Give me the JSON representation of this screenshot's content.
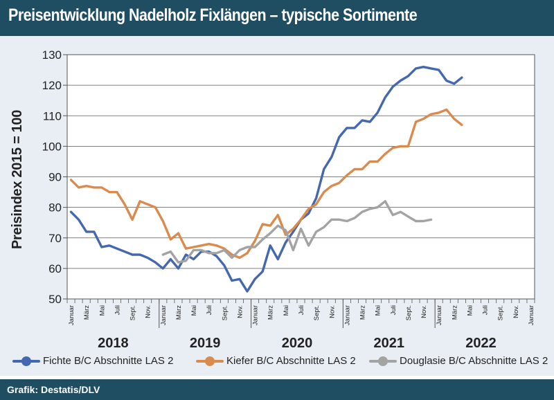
{
  "header": {
    "title": "Preisentwicklung Nadelholz Fixlängen – typische Sortimente"
  },
  "footer": {
    "source": "Grafik: Destatis/DLV"
  },
  "chart_data": {
    "type": "line",
    "title": "Preisentwicklung Nadelholz Fixlängen – typische Sortimente",
    "xlabel": "",
    "ylabel": "Preisindex 2015 = 100",
    "ylim": [
      50,
      130
    ],
    "yticks": [
      50,
      60,
      70,
      80,
      90,
      100,
      110,
      120,
      130
    ],
    "grid": true,
    "legend": "bottom",
    "x_tick_labels": [
      "Januar",
      "März",
      "Mai",
      "Juli",
      "Sept.",
      "Nov.",
      "Januar",
      "März",
      "Mai",
      "Juli",
      "Sept.",
      "Nov.",
      "Januar",
      "März",
      "Mai",
      "Juli",
      "Sept.",
      "Nov.",
      "Januar",
      "März",
      "Mai",
      "Juli",
      "Sept.",
      "Nov.",
      "Januar",
      "März",
      "Mai",
      "Juli",
      "Sept.",
      "Nov.",
      "Januar"
    ],
    "years": [
      "2018",
      "2019",
      "2020",
      "2021",
      "2022"
    ],
    "series": [
      {
        "name": "Fichte B/C Abschnitte LAS 2",
        "color": "#4468b0",
        "values": [
          78.5,
          76,
          72,
          72,
          67,
          67.5,
          66.5,
          65.5,
          64.5,
          64.5,
          63.5,
          62,
          60,
          63,
          60,
          64.5,
          63,
          65.5,
          65.5,
          64,
          61,
          56,
          56.5,
          52.5,
          56.5,
          59,
          67.5,
          63,
          68.5,
          72,
          76,
          78,
          83,
          92.5,
          96.5,
          103,
          106,
          106,
          108.5,
          108,
          111,
          116,
          119.5,
          121.5,
          123,
          125.5,
          126,
          125.5,
          125,
          121.5,
          120.5,
          122.5
        ]
      },
      {
        "name": "Kiefer B/C Abschnitte LAS 2",
        "color": "#db8a4e",
        "values": [
          89,
          86.5,
          87,
          86.5,
          86.5,
          85,
          85,
          81,
          76,
          82,
          81,
          80,
          75.5,
          69.5,
          71.5,
          66.5,
          67,
          67.5,
          68,
          67.5,
          66.5,
          64.5,
          63.5,
          65,
          69,
          74.5,
          74,
          77.5,
          71,
          73,
          76,
          79.5,
          81,
          85,
          87,
          88,
          90.5,
          92.5,
          92.5,
          95,
          95,
          97.5,
          99.5,
          100,
          100,
          108,
          109,
          110.5,
          111,
          112,
          109,
          107
        ]
      },
      {
        "name": "Douglasie B/C Abschnitte LAS 2",
        "color": "#a3a3a3",
        "start_index": 12,
        "values": [
          64.5,
          65.5,
          62,
          62.5,
          66,
          66,
          65,
          65,
          66,
          63.5,
          66,
          67,
          67,
          69.5,
          71.5,
          74,
          72.5,
          66,
          73,
          67.5,
          72,
          73.5,
          76,
          76,
          75.5,
          76.5,
          78.5,
          79.5,
          80,
          82,
          77.5,
          78.5,
          77,
          75.5,
          75.5,
          76
        ]
      }
    ]
  }
}
